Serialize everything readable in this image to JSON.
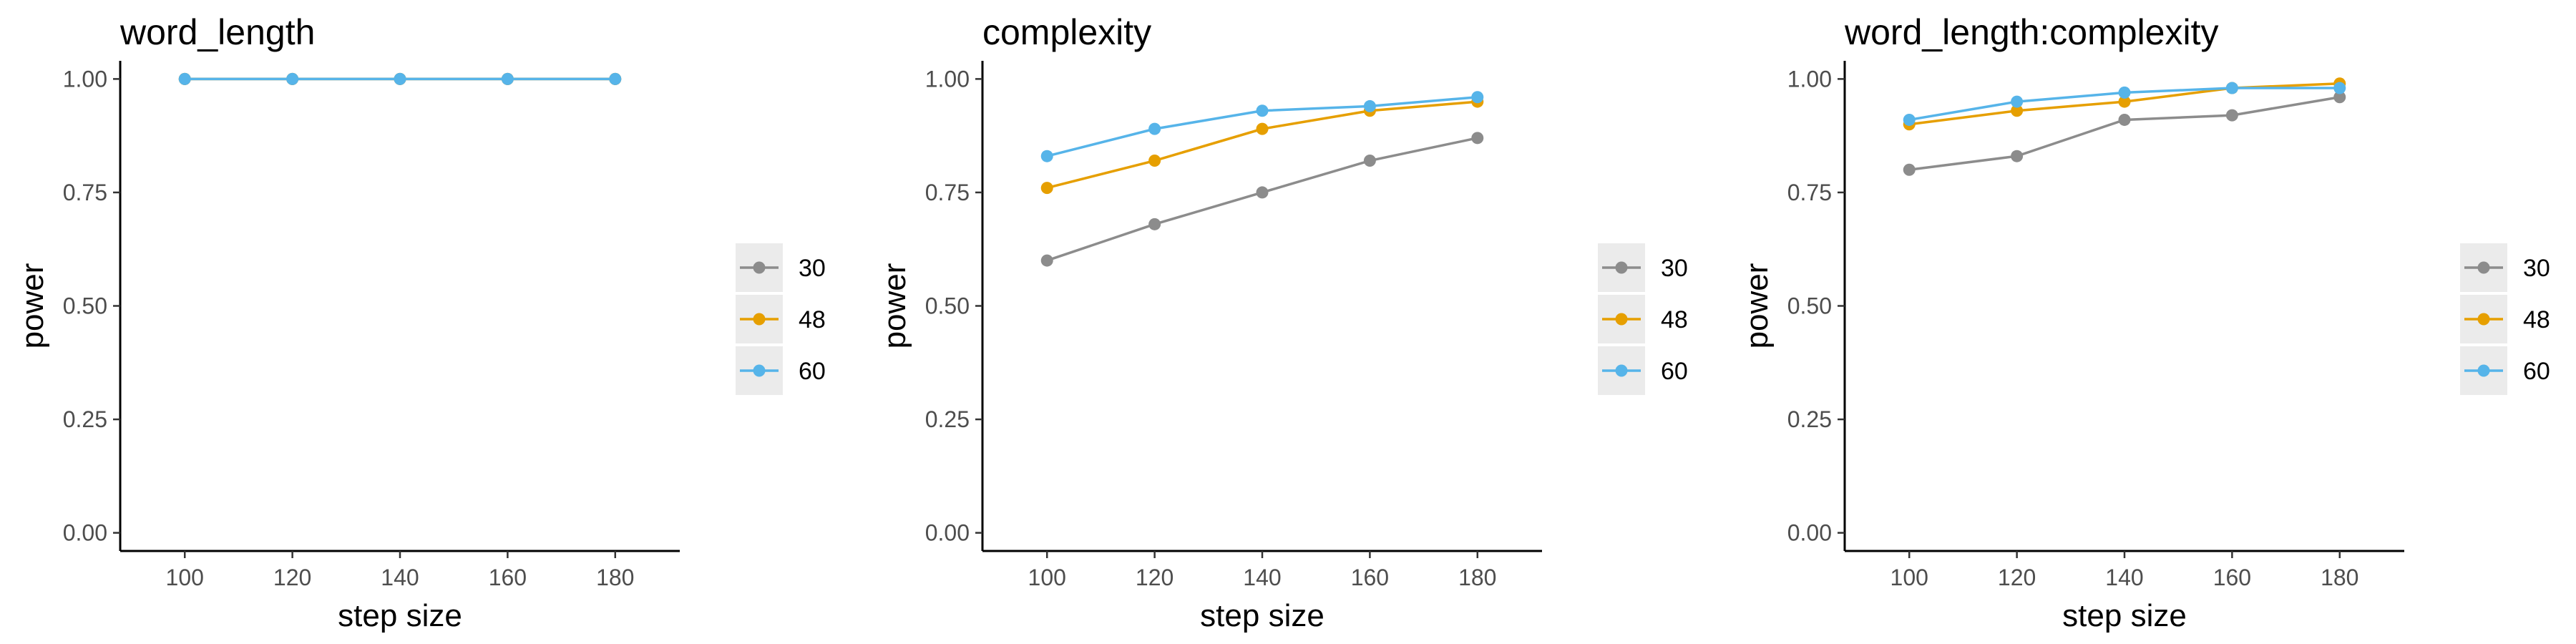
{
  "chart_data": [
    {
      "type": "line",
      "title": "word_length",
      "xlabel": "step size",
      "ylabel": "power",
      "x": [
        100,
        120,
        140,
        160,
        180
      ],
      "xlim": [
        88,
        192
      ],
      "ylim": [
        -0.04,
        1.04
      ],
      "xticks": [
        "100",
        "120",
        "140",
        "160",
        "180"
      ],
      "yticks": [
        "0.00",
        "0.25",
        "0.50",
        "0.75",
        "1.00"
      ],
      "grid": false,
      "legend": "right",
      "series": [
        {
          "name": "30",
          "color": "#8c8c8c",
          "values": [
            1.0,
            1.0,
            1.0,
            1.0,
            1.0
          ]
        },
        {
          "name": "48",
          "color": "#e69f00",
          "values": [
            1.0,
            1.0,
            1.0,
            1.0,
            1.0
          ]
        },
        {
          "name": "60",
          "color": "#56b4e9",
          "values": [
            1.0,
            1.0,
            1.0,
            1.0,
            1.0
          ]
        }
      ]
    },
    {
      "type": "line",
      "title": "complexity",
      "xlabel": "step size",
      "ylabel": "power",
      "x": [
        100,
        120,
        140,
        160,
        180
      ],
      "xlim": [
        88,
        192
      ],
      "ylim": [
        -0.04,
        1.04
      ],
      "xticks": [
        "100",
        "120",
        "140",
        "160",
        "180"
      ],
      "yticks": [
        "0.00",
        "0.25",
        "0.50",
        "0.75",
        "1.00"
      ],
      "grid": false,
      "legend": "right",
      "series": [
        {
          "name": "30",
          "color": "#8c8c8c",
          "values": [
            0.6,
            0.68,
            0.75,
            0.82,
            0.87
          ]
        },
        {
          "name": "48",
          "color": "#e69f00",
          "values": [
            0.76,
            0.82,
            0.89,
            0.93,
            0.95
          ]
        },
        {
          "name": "60",
          "color": "#56b4e9",
          "values": [
            0.83,
            0.89,
            0.93,
            0.94,
            0.96
          ]
        }
      ]
    },
    {
      "type": "line",
      "title": "word_length:complexity",
      "xlabel": "step size",
      "ylabel": "power",
      "x": [
        100,
        120,
        140,
        160,
        180
      ],
      "xlim": [
        88,
        192
      ],
      "ylim": [
        -0.04,
        1.04
      ],
      "xticks": [
        "100",
        "120",
        "140",
        "160",
        "180"
      ],
      "yticks": [
        "0.00",
        "0.25",
        "0.50",
        "0.75",
        "1.00"
      ],
      "grid": false,
      "legend": "right",
      "series": [
        {
          "name": "30",
          "color": "#8c8c8c",
          "values": [
            0.8,
            0.83,
            0.91,
            0.92,
            0.96
          ]
        },
        {
          "name": "48",
          "color": "#e69f00",
          "values": [
            0.9,
            0.93,
            0.95,
            0.98,
            0.99
          ]
        },
        {
          "name": "60",
          "color": "#56b4e9",
          "values": [
            0.91,
            0.95,
            0.97,
            0.98,
            0.98
          ]
        }
      ]
    }
  ]
}
